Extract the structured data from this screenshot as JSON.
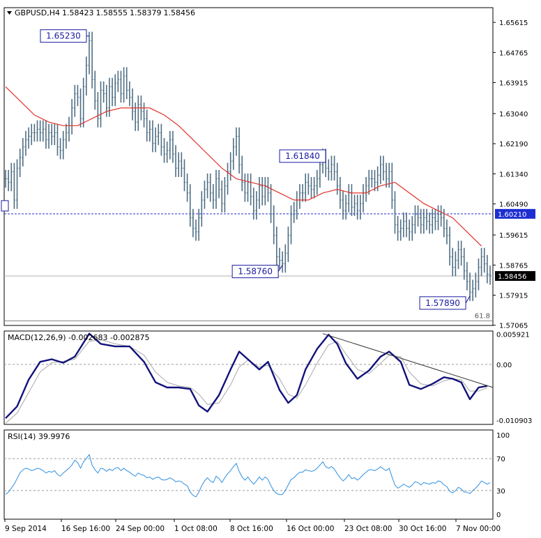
{
  "chart_data": {
    "type": "line",
    "header": {
      "symbol_timeframe": "GBPUSD,H4",
      "open": "1.58423",
      "high": "1.58555",
      "low": "1.58379",
      "close": "1.58456"
    },
    "x_tick_labels": [
      "9 Sep 2014",
      "16 Sep 16:00",
      "24 Sep 00:00",
      "1 Oct 08:00",
      "8 Oct 16:00",
      "16 Oct 00:00",
      "23 Oct 08:00",
      "30 Oct 16:00",
      "7 Nov 00:00"
    ],
    "price_panel": {
      "ylim": [
        1.5706,
        1.6603
      ],
      "y_ticks": [
        "1.65615",
        "1.64765",
        "1.63915",
        "1.63040",
        "1.62190",
        "1.61340",
        "1.60490",
        "1.59615",
        "1.58765",
        "1.57915",
        "1.57065"
      ],
      "last_price_label": "1.58456",
      "last_price": 1.58456,
      "dashed_level_label": "1.60210",
      "dashed_level": 1.6021,
      "fib_label": "61.8",
      "fib_level": 1.5719,
      "annotations": [
        {
          "label": "1.65230",
          "value": 1.6523,
          "bar": 29
        },
        {
          "label": "1.61840",
          "value": 1.6184,
          "bar": 110
        },
        {
          "label": "1.58760",
          "value": 1.5876,
          "bar": 96
        },
        {
          "label": "1.57890",
          "value": 1.5789,
          "bar": 161
        }
      ],
      "close_series": [
        1.612,
        1.611,
        1.614,
        1.606,
        1.615,
        1.618,
        1.621,
        1.623,
        1.624,
        1.625,
        1.625,
        1.626,
        1.625,
        1.626,
        1.623,
        1.625,
        1.624,
        1.625,
        1.621,
        1.62,
        1.623,
        1.625,
        1.627,
        1.632,
        1.636,
        1.635,
        1.629,
        1.638,
        1.644,
        1.651,
        1.64,
        1.634,
        1.629,
        1.637,
        1.636,
        1.632,
        1.638,
        1.635,
        1.639,
        1.64,
        1.636,
        1.641,
        1.637,
        1.635,
        1.631,
        1.628,
        1.633,
        1.631,
        1.629,
        1.625,
        1.626,
        1.622,
        1.624,
        1.625,
        1.621,
        1.619,
        1.62,
        1.623,
        1.619,
        1.615,
        1.617,
        1.615,
        1.611,
        1.608,
        1.601,
        1.598,
        1.597,
        1.601,
        1.606,
        1.609,
        1.611,
        1.608,
        1.606,
        1.612,
        1.609,
        1.605,
        1.61,
        1.614,
        1.617,
        1.621,
        1.624,
        1.616,
        1.611,
        1.608,
        1.611,
        1.607,
        1.603,
        1.606,
        1.61,
        1.607,
        1.61,
        1.608,
        1.602,
        1.596,
        1.59,
        1.589,
        1.588,
        1.591,
        1.596,
        1.602,
        1.603,
        1.606,
        1.608,
        1.608,
        1.611,
        1.61,
        1.609,
        1.61,
        1.612,
        1.616,
        1.618,
        1.615,
        1.614,
        1.616,
        1.614,
        1.61,
        1.606,
        1.603,
        1.605,
        1.608,
        1.604,
        1.605,
        1.603,
        1.605,
        1.608,
        1.61,
        1.612,
        1.612,
        1.611,
        1.613,
        1.616,
        1.614,
        1.612,
        1.614,
        1.606,
        1.599,
        1.597,
        1.598,
        1.6,
        1.598,
        1.597,
        1.599,
        1.602,
        1.601,
        1.599,
        1.601,
        1.6,
        1.599,
        1.601,
        1.6,
        1.602,
        1.601,
        1.598,
        1.596,
        1.59,
        1.587,
        1.589,
        1.592,
        1.59,
        1.586,
        1.583,
        1.58,
        1.581,
        1.583,
        1.587,
        1.59,
        1.588,
        1.585,
        1.5846
      ],
      "moving_average": [
        {
          "bar": 0,
          "value": 1.638
        },
        {
          "bar": 5,
          "value": 1.634
        },
        {
          "bar": 10,
          "value": 1.63
        },
        {
          "bar": 15,
          "value": 1.628
        },
        {
          "bar": 20,
          "value": 1.627
        },
        {
          "bar": 25,
          "value": 1.627
        },
        {
          "bar": 30,
          "value": 1.629
        },
        {
          "bar": 35,
          "value": 1.631
        },
        {
          "bar": 40,
          "value": 1.632
        },
        {
          "bar": 45,
          "value": 1.632
        },
        {
          "bar": 50,
          "value": 1.632
        },
        {
          "bar": 55,
          "value": 1.63
        },
        {
          "bar": 60,
          "value": 1.627
        },
        {
          "bar": 65,
          "value": 1.623
        },
        {
          "bar": 70,
          "value": 1.619
        },
        {
          "bar": 75,
          "value": 1.615
        },
        {
          "bar": 80,
          "value": 1.612
        },
        {
          "bar": 85,
          "value": 1.611
        },
        {
          "bar": 90,
          "value": 1.61
        },
        {
          "bar": 95,
          "value": 1.608
        },
        {
          "bar": 100,
          "value": 1.606
        },
        {
          "bar": 105,
          "value": 1.606
        },
        {
          "bar": 110,
          "value": 1.608
        },
        {
          "bar": 115,
          "value": 1.609
        },
        {
          "bar": 120,
          "value": 1.608
        },
        {
          "bar": 125,
          "value": 1.608
        },
        {
          "bar": 130,
          "value": 1.61
        },
        {
          "bar": 135,
          "value": 1.611
        },
        {
          "bar": 140,
          "value": 1.608
        },
        {
          "bar": 145,
          "value": 1.605
        },
        {
          "bar": 150,
          "value": 1.603
        },
        {
          "bar": 155,
          "value": 1.601
        },
        {
          "bar": 160,
          "value": 1.597
        },
        {
          "bar": 165,
          "value": 1.593
        }
      ]
    },
    "macd_panel": {
      "label": "MACD(12,26,9) -0.002683 -0.002875",
      "ylim": [
        -0.0117,
        0.0065
      ],
      "y_ticks": [
        "0.005921",
        "0.00",
        "-0.010903"
      ],
      "main_points": [
        {
          "bar": 0,
          "value": -0.0105
        },
        {
          "bar": 4,
          "value": -0.0082
        },
        {
          "bar": 8,
          "value": -0.003
        },
        {
          "bar": 12,
          "value": 0.0005
        },
        {
          "bar": 16,
          "value": 0.001
        },
        {
          "bar": 20,
          "value": 0.0003
        },
        {
          "bar": 24,
          "value": 0.0015
        },
        {
          "bar": 29,
          "value": 0.006
        },
        {
          "bar": 33,
          "value": 0.004
        },
        {
          "bar": 38,
          "value": 0.0035
        },
        {
          "bar": 43,
          "value": 0.0035
        },
        {
          "bar": 48,
          "value": 0.0005
        },
        {
          "bar": 52,
          "value": -0.0035
        },
        {
          "bar": 56,
          "value": -0.0045
        },
        {
          "bar": 60,
          "value": -0.0045
        },
        {
          "bar": 64,
          "value": -0.0048
        },
        {
          "bar": 67,
          "value": -0.008
        },
        {
          "bar": 70,
          "value": -0.0092
        },
        {
          "bar": 74,
          "value": -0.006
        },
        {
          "bar": 78,
          "value": -0.001
        },
        {
          "bar": 81,
          "value": 0.0025
        },
        {
          "bar": 84,
          "value": 0.001
        },
        {
          "bar": 88,
          "value": -0.001
        },
        {
          "bar": 91,
          "value": 0.0005
        },
        {
          "bar": 95,
          "value": -0.005
        },
        {
          "bar": 98,
          "value": -0.0075
        },
        {
          "bar": 101,
          "value": -0.006
        },
        {
          "bar": 104,
          "value": -0.001
        },
        {
          "bar": 108,
          "value": 0.003
        },
        {
          "bar": 112,
          "value": 0.0058
        },
        {
          "bar": 115,
          "value": 0.004
        },
        {
          "bar": 118,
          "value": 0.0002
        },
        {
          "bar": 122,
          "value": -0.0028
        },
        {
          "bar": 126,
          "value": -0.0012
        },
        {
          "bar": 130,
          "value": 0.0015
        },
        {
          "bar": 133,
          "value": 0.0025
        },
        {
          "bar": 137,
          "value": 0.0005
        },
        {
          "bar": 140,
          "value": -0.004
        },
        {
          "bar": 144,
          "value": -0.0048
        },
        {
          "bar": 148,
          "value": -0.0038
        },
        {
          "bar": 152,
          "value": -0.0025
        },
        {
          "bar": 155,
          "value": -0.0028
        },
        {
          "bar": 158,
          "value": -0.0035
        },
        {
          "bar": 161,
          "value": -0.0068
        },
        {
          "bar": 164,
          "value": -0.0045
        },
        {
          "bar": 167,
          "value": -0.0042
        }
      ],
      "signal_points": [
        {
          "bar": 0,
          "value": -0.0115
        },
        {
          "bar": 4,
          "value": -0.0095
        },
        {
          "bar": 8,
          "value": -0.0055
        },
        {
          "bar": 12,
          "value": -0.0015
        },
        {
          "bar": 16,
          "value": 0.0003
        },
        {
          "bar": 20,
          "value": 0.0006
        },
        {
          "bar": 24,
          "value": 0.001
        },
        {
          "bar": 29,
          "value": 0.0045
        },
        {
          "bar": 33,
          "value": 0.0048
        },
        {
          "bar": 38,
          "value": 0.004
        },
        {
          "bar": 43,
          "value": 0.0035
        },
        {
          "bar": 48,
          "value": 0.0018
        },
        {
          "bar": 52,
          "value": -0.0015
        },
        {
          "bar": 56,
          "value": -0.0035
        },
        {
          "bar": 60,
          "value": -0.0042
        },
        {
          "bar": 64,
          "value": -0.0045
        },
        {
          "bar": 67,
          "value": -0.0058
        },
        {
          "bar": 70,
          "value": -0.0078
        },
        {
          "bar": 74,
          "value": -0.0075
        },
        {
          "bar": 78,
          "value": -0.004
        },
        {
          "bar": 81,
          "value": -0.0005
        },
        {
          "bar": 84,
          "value": 0.0008
        },
        {
          "bar": 88,
          "value": -0.0005
        },
        {
          "bar": 91,
          "value": -0.0002
        },
        {
          "bar": 95,
          "value": -0.0028
        },
        {
          "bar": 98,
          "value": -0.0058
        },
        {
          "bar": 101,
          "value": -0.0066
        },
        {
          "bar": 104,
          "value": -0.004
        },
        {
          "bar": 108,
          "value": 0.0002
        },
        {
          "bar": 112,
          "value": 0.0038
        },
        {
          "bar": 115,
          "value": 0.0045
        },
        {
          "bar": 118,
          "value": 0.002
        },
        {
          "bar": 122,
          "value": -0.001
        },
        {
          "bar": 126,
          "value": -0.0018
        },
        {
          "bar": 130,
          "value": 0.0002
        },
        {
          "bar": 133,
          "value": 0.0018
        },
        {
          "bar": 137,
          "value": 0.0015
        },
        {
          "bar": 140,
          "value": -0.0015
        },
        {
          "bar": 144,
          "value": -0.0038
        },
        {
          "bar": 148,
          "value": -0.0042
        },
        {
          "bar": 152,
          "value": -0.0032
        },
        {
          "bar": 155,
          "value": -0.0028
        },
        {
          "bar": 158,
          "value": -0.003
        },
        {
          "bar": 161,
          "value": -0.0052
        },
        {
          "bar": 164,
          "value": -0.0052
        },
        {
          "bar": 167,
          "value": -0.0046
        }
      ],
      "trendline": [
        {
          "bar": 110,
          "value": 0.006
        },
        {
          "bar": 169,
          "value": -0.0045
        }
      ]
    },
    "rsi_panel": {
      "label": "RSI(14) 39.9976",
      "ylim": [
        -6,
        106
      ],
      "y_ticks": [
        "100",
        "70",
        "30",
        "0"
      ],
      "levels": [
        70,
        30
      ],
      "values": [
        25,
        28,
        33,
        38,
        45,
        52,
        56,
        58,
        57,
        55,
        56,
        58,
        57,
        55,
        52,
        54,
        53,
        55,
        50,
        48,
        52,
        55,
        58,
        62,
        68,
        65,
        58,
        66,
        70,
        75,
        62,
        56,
        52,
        58,
        57,
        54,
        57,
        55,
        58,
        59,
        55,
        58,
        55,
        53,
        50,
        48,
        52,
        50,
        49,
        46,
        47,
        44,
        46,
        47,
        44,
        43,
        44,
        46,
        44,
        41,
        42,
        41,
        38,
        36,
        28,
        24,
        22,
        28,
        36,
        42,
        46,
        42,
        40,
        48,
        45,
        40,
        46,
        51,
        55,
        60,
        64,
        54,
        47,
        43,
        47,
        42,
        38,
        42,
        47,
        43,
        47,
        44,
        36,
        30,
        26,
        25,
        25,
        30,
        37,
        44,
        46,
        50,
        53,
        53,
        56,
        55,
        54,
        55,
        58,
        62,
        66,
        60,
        58,
        60,
        57,
        51,
        46,
        42,
        45,
        50,
        45,
        46,
        43,
        46,
        50,
        53,
        56,
        56,
        55,
        57,
        60,
        57,
        55,
        58,
        47,
        37,
        33,
        35,
        38,
        36,
        34,
        37,
        41,
        40,
        37,
        40,
        39,
        38,
        40,
        39,
        42,
        41,
        37,
        35,
        29,
        27,
        30,
        34,
        32,
        28,
        28,
        26,
        30,
        33,
        37,
        42,
        40,
        38,
        40
      ]
    }
  }
}
